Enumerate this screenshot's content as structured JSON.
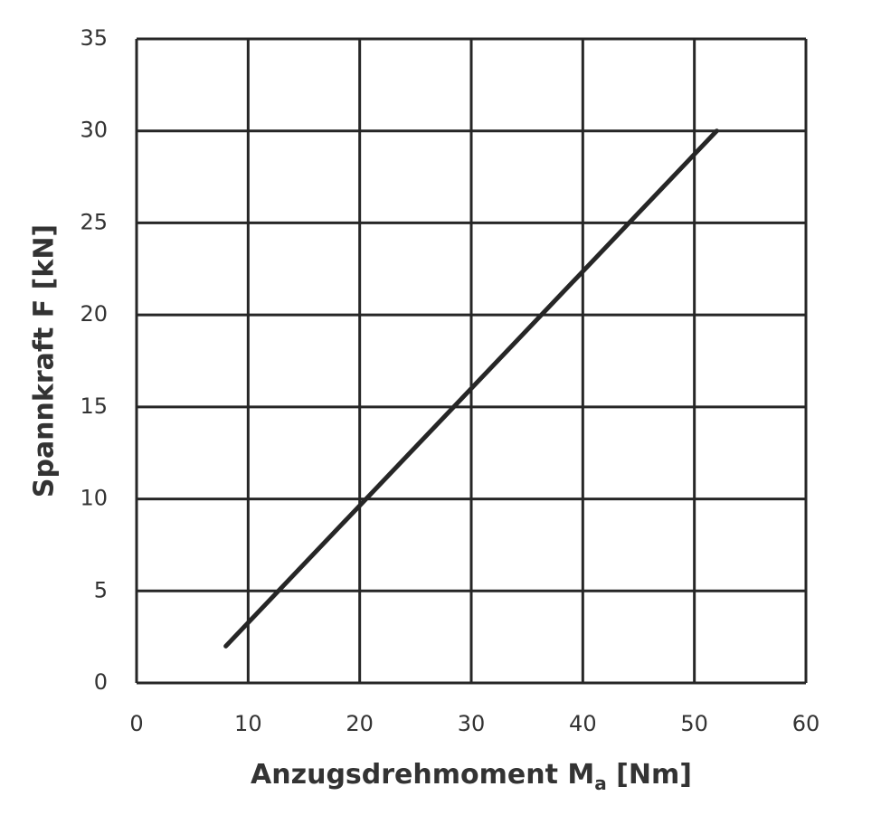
{
  "chart_data": {
    "type": "line",
    "x_label_parts": [
      "Anzugsdrehmoment M",
      "a",
      " [Nm]"
    ],
    "y_label": "Spannkraft F [kN]",
    "x": [
      8,
      52
    ],
    "series": [
      {
        "color": "#262626",
        "values": [
          2,
          30
        ]
      }
    ],
    "xlim": [
      0,
      60
    ],
    "xticks": [
      0,
      10,
      20,
      30,
      40,
      50,
      60
    ],
    "ylim": [
      0,
      35
    ],
    "yticks": [
      0,
      5,
      10,
      15,
      20,
      25,
      30,
      35
    ],
    "grid": true
  }
}
